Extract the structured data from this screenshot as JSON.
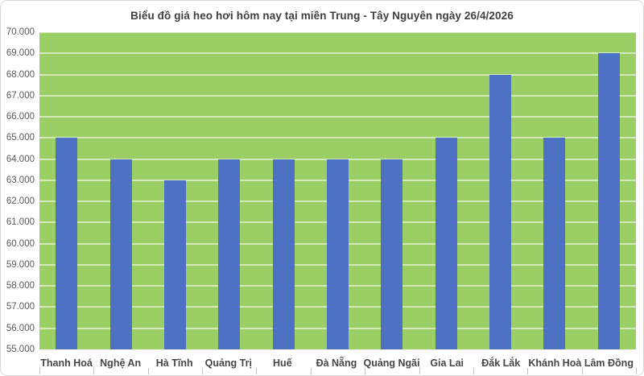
{
  "chart_data": {
    "type": "bar",
    "title": "Biểu đồ giá heo hơi hôm nay tại miền Trung - Tây Nguyên ngày 26/4/2026",
    "categories": [
      "Thanh Hoá",
      "Nghệ An",
      "Hà Tĩnh",
      "Quảng Trị",
      "Huế",
      "Đà Nẵng",
      "Quảng Ngãi",
      "Gia Lai",
      "Đắk Lắk",
      "Khánh Hoà",
      "Lâm Đồng"
    ],
    "values": [
      65000,
      64000,
      63000,
      64000,
      64000,
      64000,
      64000,
      65000,
      68000,
      65000,
      69000
    ],
    "y_tick_labels": [
      "55.000",
      "56.000",
      "57.000",
      "58.000",
      "59.000",
      "60.000",
      "61.000",
      "62.000",
      "63.000",
      "64.000",
      "65.000",
      "66.000",
      "67.000",
      "68.000",
      "69.000",
      "70.000"
    ],
    "ylim": [
      55000,
      70000
    ],
    "y_step": 1000,
    "xlabel": "",
    "ylabel": "",
    "grid": true,
    "legend": false,
    "colors": {
      "bar": "#4d72c3",
      "plot_background": "#9cce66",
      "gridline": "rgba(255,255,255,0.55)",
      "title_text": "#3f3f3f",
      "y_axis_text": "#595959",
      "category_text": "#464646",
      "frame_border": "#d7d7d7",
      "tick": "#bdbdbd",
      "background": "#ffffff"
    }
  }
}
